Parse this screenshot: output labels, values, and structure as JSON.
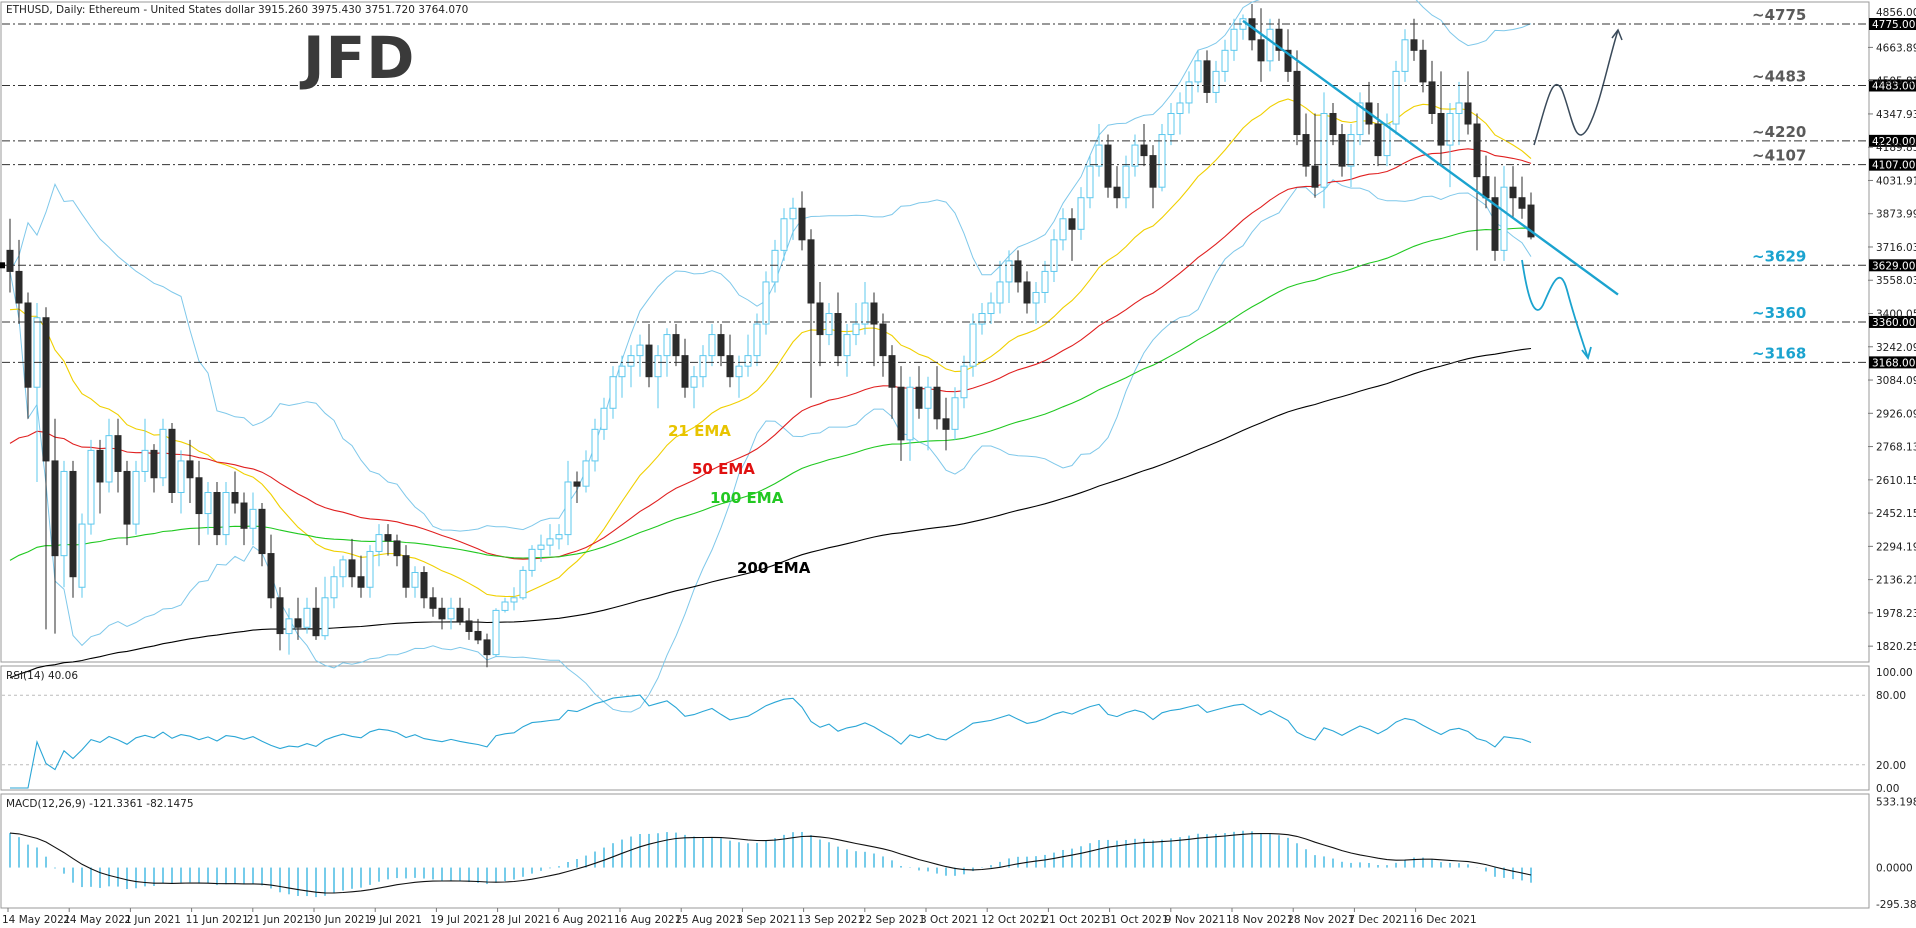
{
  "chart_data": {
    "type": "candlestick",
    "title": "ETHUSD, Daily:  Ethereum - United States dollar  3915.260 3975.430 3751.720 3764.070",
    "logo": "JFD",
    "x_dates": [
      "14 May 2021",
      "24 May 2021",
      "2 Jun 2021",
      "11 Jun 2021",
      "21 Jun 2021",
      "30 Jun 2021",
      "9 Jul 2021",
      "19 Jul 2021",
      "28 Jul 2021",
      "6 Aug 2021",
      "16 Aug 2021",
      "25 Aug 2021",
      "3 Sep 2021",
      "13 Sep 2021",
      "22 Sep 2021",
      "3 Oct 2021",
      "12 Oct 2021",
      "21 Oct 2021",
      "31 Oct 2021",
      "9 Nov 2021",
      "18 Nov 2021",
      "28 Nov 2021",
      "7 Dec 2021",
      "16 Dec 2021"
    ],
    "price_axis": {
      "ticks": [
        "4663.890",
        "4505.810",
        "4347.930",
        "4189.850",
        "4031.910",
        "3873.990",
        "3716.030",
        "3558.030",
        "3400.050",
        "3242.090",
        "3084.090",
        "2926.090",
        "2768.130",
        "2610.150",
        "2452.150",
        "2294.190",
        "2136.210",
        "1978.230",
        "1820.250"
      ],
      "ylim": [
        1745,
        4870
      ],
      "top_label": "4856.000"
    },
    "levels": [
      {
        "value": 4775,
        "label": "~4775",
        "box": "4775.000",
        "color": "#5a5a5a"
      },
      {
        "value": 4483,
        "label": "~4483",
        "box": "4483.000",
        "color": "#5a5a5a"
      },
      {
        "value": 4220,
        "label": "~4220",
        "box": "4220.000",
        "color": "#5a5a5a"
      },
      {
        "value": 4107,
        "label": "~4107",
        "box": "4107.000",
        "color": "#5a5a5a"
      },
      {
        "value": 3629,
        "label": "~3629",
        "box": "3629.000",
        "color": "#1ba3cf"
      },
      {
        "value": 3360,
        "label": "~3360",
        "box": "3360.000",
        "color": "#1ba3cf"
      },
      {
        "value": 3168,
        "label": "~3168",
        "box": "3168.000",
        "color": "#1ba3cf"
      }
    ],
    "ema_labels": [
      {
        "text": "21 EMA",
        "color": "#e8c400"
      },
      {
        "text": "50 EMA",
        "color": "#e01010"
      },
      {
        "text": "100 EMA",
        "color": "#22c822"
      },
      {
        "text": "200 EMA",
        "color": "#000000"
      }
    ],
    "candles": [
      [
        3700,
        3850,
        3500,
        3600
      ],
      [
        3600,
        3750,
        3350,
        3450
      ],
      [
        3450,
        3500,
        2900,
        3050
      ],
      [
        3050,
        3450,
        2600,
        3380
      ],
      [
        3380,
        3430,
        1900,
        2700
      ],
      [
        2700,
        2900,
        1880,
        2250
      ],
      [
        2250,
        2700,
        2100,
        2650
      ],
      [
        2650,
        2700,
        2050,
        2150
      ],
      [
        2100,
        2450,
        2050,
        2400
      ],
      [
        2400,
        2800,
        2350,
        2750
      ],
      [
        2750,
        2800,
        2450,
        2600
      ],
      [
        2600,
        2900,
        2550,
        2820
      ],
      [
        2820,
        2900,
        2550,
        2650
      ],
      [
        2650,
        2700,
        2300,
        2400
      ],
      [
        2400,
        2700,
        2350,
        2650
      ],
      [
        2650,
        2900,
        2600,
        2750
      ],
      [
        2750,
        2780,
        2550,
        2620
      ],
      [
        2620,
        2900,
        2580,
        2850
      ],
      [
        2850,
        2880,
        2500,
        2550
      ],
      [
        2550,
        2750,
        2450,
        2700
      ],
      [
        2700,
        2800,
        2500,
        2620
      ],
      [
        2620,
        2700,
        2300,
        2450
      ],
      [
        2450,
        2600,
        2350,
        2550
      ],
      [
        2550,
        2600,
        2300,
        2350
      ],
      [
        2350,
        2600,
        2300,
        2550
      ],
      [
        2550,
        2650,
        2450,
        2500
      ],
      [
        2500,
        2550,
        2300,
        2380
      ],
      [
        2380,
        2550,
        2300,
        2470
      ],
      [
        2470,
        2500,
        2200,
        2260
      ],
      [
        2260,
        2350,
        2000,
        2050
      ],
      [
        2050,
        2100,
        1800,
        1880
      ],
      [
        1880,
        2000,
        1780,
        1950
      ],
      [
        1950,
        2050,
        1850,
        1910
      ],
      [
        1910,
        2050,
        1880,
        2000
      ],
      [
        2000,
        2100,
        1850,
        1870
      ],
      [
        1870,
        2150,
        1850,
        2050
      ],
      [
        2050,
        2200,
        2000,
        2150
      ],
      [
        2150,
        2250,
        2100,
        2230
      ],
      [
        2230,
        2330,
        2100,
        2150
      ],
      [
        2150,
        2250,
        2050,
        2100
      ],
      [
        2100,
        2300,
        2050,
        2270
      ],
      [
        2270,
        2400,
        2200,
        2350
      ],
      [
        2350,
        2400,
        2250,
        2320
      ],
      [
        2320,
        2350,
        2200,
        2250
      ],
      [
        2250,
        2300,
        2050,
        2100
      ],
      [
        2100,
        2200,
        2050,
        2170
      ],
      [
        2170,
        2200,
        2000,
        2050
      ],
      [
        2050,
        2100,
        1960,
        2000
      ],
      [
        2000,
        2050,
        1900,
        1950
      ],
      [
        1950,
        2050,
        1900,
        2000
      ],
      [
        2000,
        2050,
        1920,
        1940
      ],
      [
        1940,
        2000,
        1850,
        1890
      ],
      [
        1890,
        1950,
        1830,
        1850
      ],
      [
        1850,
        1880,
        1720,
        1780
      ],
      [
        1780,
        2000,
        1770,
        1990
      ],
      [
        1990,
        2050,
        1980,
        2030
      ],
      [
        2030,
        2100,
        1990,
        2050
      ],
      [
        2050,
        2200,
        2040,
        2180
      ],
      [
        2180,
        2300,
        2150,
        2280
      ],
      [
        2280,
        2350,
        2220,
        2300
      ],
      [
        2300,
        2400,
        2250,
        2330
      ],
      [
        2330,
        2400,
        2280,
        2350
      ],
      [
        2350,
        2700,
        2300,
        2600
      ],
      [
        2600,
        2650,
        2500,
        2580
      ],
      [
        2580,
        2750,
        2550,
        2700
      ],
      [
        2700,
        2900,
        2650,
        2850
      ],
      [
        2850,
        3000,
        2800,
        2950
      ],
      [
        2950,
        3150,
        2900,
        3100
      ],
      [
        3100,
        3200,
        3000,
        3150
      ],
      [
        3150,
        3250,
        3050,
        3200
      ],
      [
        3200,
        3300,
        3100,
        3250
      ],
      [
        3250,
        3350,
        3050,
        3100
      ],
      [
        3100,
        3250,
        2950,
        3200
      ],
      [
        3200,
        3330,
        3100,
        3300
      ],
      [
        3300,
        3350,
        3150,
        3200
      ],
      [
        3200,
        3280,
        3000,
        3050
      ],
      [
        3050,
        3150,
        2950,
        3100
      ],
      [
        3100,
        3250,
        3050,
        3200
      ],
      [
        3200,
        3350,
        3150,
        3300
      ],
      [
        3300,
        3350,
        3150,
        3200
      ],
      [
        3200,
        3300,
        3050,
        3100
      ],
      [
        3100,
        3200,
        3000,
        3150
      ],
      [
        3150,
        3300,
        3100,
        3200
      ],
      [
        3200,
        3400,
        3150,
        3350
      ],
      [
        3350,
        3600,
        3300,
        3550
      ],
      [
        3550,
        3750,
        3500,
        3700
      ],
      [
        3700,
        3900,
        3650,
        3850
      ],
      [
        3850,
        3950,
        3750,
        3900
      ],
      [
        3900,
        3980,
        3700,
        3750
      ],
      [
        3750,
        3800,
        3000,
        3450
      ],
      [
        3450,
        3550,
        3150,
        3300
      ],
      [
        3300,
        3450,
        3250,
        3400
      ],
      [
        3400,
        3500,
        3150,
        3200
      ],
      [
        3200,
        3350,
        3100,
        3300
      ],
      [
        3300,
        3450,
        3250,
        3350
      ],
      [
        3350,
        3550,
        3300,
        3450
      ],
      [
        3450,
        3500,
        3150,
        3350
      ],
      [
        3350,
        3400,
        3100,
        3200
      ],
      [
        3200,
        3250,
        2900,
        3050
      ],
      [
        3050,
        3150,
        2700,
        2800
      ],
      [
        2800,
        3100,
        2700,
        3050
      ],
      [
        3050,
        3150,
        2900,
        2950
      ],
      [
        2950,
        3100,
        2750,
        3050
      ],
      [
        3050,
        3150,
        2850,
        2900
      ],
      [
        2900,
        3000,
        2750,
        2850
      ],
      [
        2850,
        3050,
        2800,
        3000
      ],
      [
        3000,
        3200,
        2950,
        3150
      ],
      [
        3150,
        3400,
        3100,
        3350
      ],
      [
        3350,
        3450,
        3300,
        3400
      ],
      [
        3400,
        3500,
        3350,
        3450
      ],
      [
        3450,
        3650,
        3400,
        3550
      ],
      [
        3550,
        3700,
        3450,
        3650
      ],
      [
        3650,
        3700,
        3500,
        3550
      ],
      [
        3550,
        3600,
        3400,
        3450
      ],
      [
        3450,
        3550,
        3350,
        3500
      ],
      [
        3500,
        3650,
        3450,
        3600
      ],
      [
        3600,
        3800,
        3550,
        3750
      ],
      [
        3750,
        3900,
        3700,
        3850
      ],
      [
        3850,
        3900,
        3650,
        3800
      ],
      [
        3800,
        4000,
        3750,
        3950
      ],
      [
        3950,
        4150,
        3900,
        4100
      ],
      [
        4100,
        4300,
        4050,
        4200
      ],
      [
        4200,
        4250,
        3950,
        4000
      ],
      [
        4000,
        4100,
        3900,
        3950
      ],
      [
        3950,
        4150,
        3900,
        4100
      ],
      [
        4100,
        4250,
        4050,
        4200
      ],
      [
        4200,
        4300,
        4100,
        4150
      ],
      [
        4150,
        4200,
        3900,
        4000
      ],
      [
        4000,
        4300,
        3980,
        4250
      ],
      [
        4250,
        4400,
        4200,
        4350
      ],
      [
        4350,
        4450,
        4250,
        4400
      ],
      [
        4400,
        4550,
        4350,
        4500
      ],
      [
        4500,
        4650,
        4450,
        4600
      ],
      [
        4600,
        4650,
        4400,
        4450
      ],
      [
        4450,
        4600,
        4400,
        4550
      ],
      [
        4550,
        4700,
        4500,
        4650
      ],
      [
        4650,
        4800,
        4600,
        4750
      ],
      [
        4750,
        4820,
        4700,
        4800
      ],
      [
        4800,
        4870,
        4650,
        4700
      ],
      [
        4700,
        4850,
        4500,
        4600
      ],
      [
        4600,
        4800,
        4550,
        4750
      ],
      [
        4750,
        4800,
        4600,
        4650
      ],
      [
        4650,
        4750,
        4500,
        4550
      ],
      [
        4550,
        4650,
        4200,
        4250
      ],
      [
        4250,
        4350,
        4050,
        4100
      ],
      [
        4100,
        4350,
        3950,
        4000
      ],
      [
        4000,
        4450,
        3900,
        4350
      ],
      [
        4350,
        4400,
        4200,
        4250
      ],
      [
        4250,
        4300,
        4050,
        4100
      ],
      [
        4100,
        4300,
        4000,
        4250
      ],
      [
        4250,
        4450,
        4200,
        4400
      ],
      [
        4400,
        4500,
        4250,
        4300
      ],
      [
        4300,
        4400,
        4100,
        4150
      ],
      [
        4150,
        4350,
        4100,
        4300
      ],
      [
        4300,
        4600,
        4250,
        4550
      ],
      [
        4550,
        4750,
        4500,
        4700
      ],
      [
        4700,
        4800,
        4600,
        4650
      ],
      [
        4650,
        4700,
        4450,
        4500
      ],
      [
        4500,
        4600,
        4300,
        4350
      ],
      [
        4350,
        4550,
        4100,
        4200
      ],
      [
        4200,
        4400,
        4000,
        4350
      ],
      [
        4350,
        4500,
        4200,
        4400
      ],
      [
        4400,
        4550,
        4250,
        4300
      ],
      [
        4300,
        4350,
        3700,
        4050
      ],
      [
        4050,
        4150,
        3900,
        3950
      ],
      [
        3950,
        4050,
        3650,
        3700
      ],
      [
        3700,
        4100,
        3650,
        4000
      ],
      [
        4000,
        4100,
        3850,
        3950
      ],
      [
        3950,
        4050,
        3850,
        3900
      ],
      [
        3915,
        3975,
        3752,
        3764
      ]
    ],
    "rsi": {
      "label": "RSI(14) 40.06",
      "levels": [
        100,
        80,
        20,
        0
      ],
      "tick_labels": [
        "100.00",
        "80.00",
        "20.00",
        "0.00"
      ],
      "last": 40.06
    },
    "macd": {
      "label": "MACD(12,26,9) -121.3361 -82.1475",
      "tick_labels": [
        "533.1981",
        "0.0000",
        "-295.3840"
      ],
      "ylim": [
        -310,
        545
      ]
    }
  }
}
